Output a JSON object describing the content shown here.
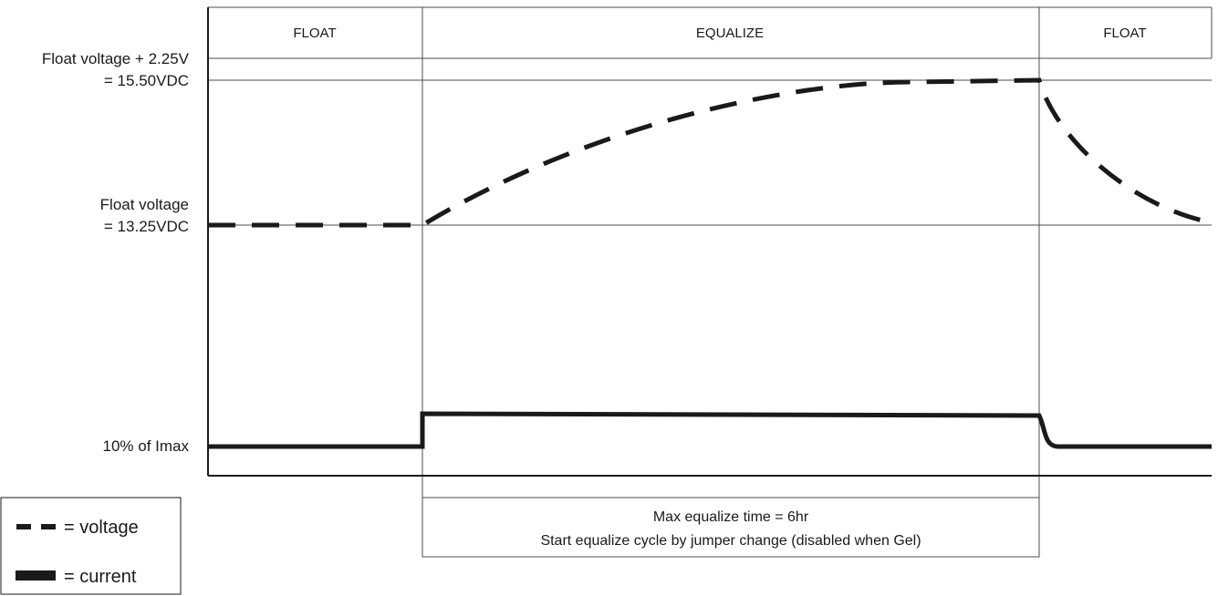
{
  "colors": {
    "ink": "#1a1a1a",
    "grid": "#4d4d4d",
    "background": "#ffffff"
  },
  "phases": [
    {
      "label": "FLOAT"
    },
    {
      "label": "EQUALIZE"
    },
    {
      "label": "FLOAT"
    }
  ],
  "y_labels": {
    "equalize_voltage": {
      "line1": "Float voltage + 2.25V",
      "line2": "= 15.50VDC"
    },
    "float_voltage": {
      "line1": "Float voltage",
      "line2": "= 13.25VDC"
    },
    "float_current": "10% of Imax"
  },
  "note": {
    "line1": "Max equalize time = 6hr",
    "line2": "Start equalize cycle by jumper change (disabled when Gel)"
  },
  "legend": {
    "voltage": {
      "label": "= voltage",
      "style": "dashed"
    },
    "current": {
      "label": "= current",
      "style": "solid"
    }
  }
}
